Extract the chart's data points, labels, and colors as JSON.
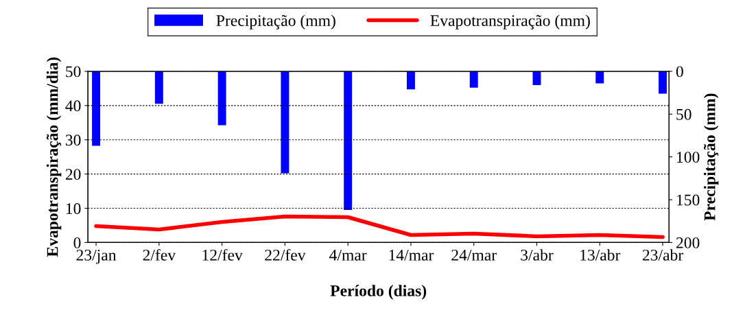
{
  "chart_data": {
    "type": "line",
    "xlabel": "Período (dias)",
    "ylabel": "Evapotranspiração (mm/dia)",
    "y2label": "Precipitação (mm)",
    "categories": [
      "23/jan",
      "2/fev",
      "12/fev",
      "22/fev",
      "4/mar",
      "14/mar",
      "24/mar",
      "3/abr",
      "13/abr",
      "23/abr"
    ],
    "series": [
      {
        "name": "Precipitação (mm)",
        "type": "bar",
        "axis": "y2",
        "color": "#0000ff",
        "values": [
          87,
          38,
          63,
          119,
          162,
          21,
          19,
          16,
          14,
          26
        ]
      },
      {
        "name": "Evapotranspiração (mm)",
        "color": "#ff0000",
        "values": [
          4.8,
          3.8,
          6.0,
          7.6,
          7.4,
          2.2,
          2.6,
          1.8,
          2.2,
          1.6
        ]
      }
    ],
    "ylim": [
      0,
      50
    ],
    "yticks": [
      0,
      10,
      20,
      30,
      40,
      50
    ],
    "y2lim": [
      200,
      0
    ],
    "y2ticks": [
      0,
      50,
      100,
      150,
      200
    ],
    "grid": "y",
    "legend": "top",
    "marker": "none",
    "line_style": "solid"
  }
}
